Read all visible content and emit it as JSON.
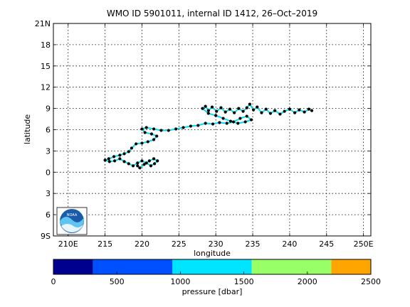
{
  "chart_data": {
    "type": "scatter",
    "title": "WMO ID 5901011, internal ID 1412, 26–Oct–2019",
    "xlabel": "longitude",
    "ylabel": "latitude",
    "xlim": [
      208,
      251
    ],
    "ylim": [
      -9,
      21
    ],
    "x_ticks": [
      210,
      215,
      220,
      225,
      230,
      235,
      240,
      245,
      250
    ],
    "x_tick_labels": [
      "210E",
      "215",
      "220",
      "225",
      "230",
      "235",
      "240",
      "245",
      "250E"
    ],
    "y_ticks": [
      21,
      18,
      15,
      12,
      9,
      6,
      3,
      0,
      -3,
      -6,
      -9
    ],
    "y_tick_labels": [
      "21N",
      "18",
      "15",
      "12",
      "9",
      "6",
      "3",
      "0",
      "3",
      "6",
      "9S"
    ],
    "grid": true,
    "track": {
      "name": "float trajectory",
      "line_color": "#00ddee",
      "marker_color": "#000000",
      "points": [
        [
          243.0,
          8.7
        ],
        [
          242.6,
          8.9
        ],
        [
          242.0,
          8.5
        ],
        [
          241.3,
          8.8
        ],
        [
          240.7,
          8.4
        ],
        [
          240.0,
          8.9
        ],
        [
          239.3,
          8.6
        ],
        [
          238.7,
          8.2
        ],
        [
          238.0,
          8.7
        ],
        [
          237.4,
          8.3
        ],
        [
          236.8,
          8.9
        ],
        [
          236.2,
          8.4
        ],
        [
          235.6,
          9.2
        ],
        [
          235.1,
          8.8
        ],
        [
          234.6,
          9.6
        ],
        [
          234.2,
          9.1
        ],
        [
          233.7,
          8.6
        ],
        [
          233.1,
          9.0
        ],
        [
          232.5,
          8.4
        ],
        [
          231.9,
          8.9
        ],
        [
          231.3,
          8.5
        ],
        [
          230.7,
          9.1
        ],
        [
          230.1,
          8.6
        ],
        [
          229.5,
          9.2
        ],
        [
          229.0,
          8.7
        ],
        [
          228.6,
          9.3
        ],
        [
          228.2,
          9.0
        ],
        [
          229.0,
          8.3
        ],
        [
          230.0,
          8.0
        ],
        [
          231.0,
          7.6
        ],
        [
          232.0,
          7.2
        ],
        [
          233.0,
          6.9
        ],
        [
          234.0,
          7.1
        ],
        [
          234.8,
          7.4
        ],
        [
          234.2,
          7.9
        ],
        [
          233.3,
          7.6
        ],
        [
          232.4,
          7.1
        ],
        [
          231.5,
          6.9
        ],
        [
          230.5,
          7.0
        ],
        [
          229.6,
          6.8
        ],
        [
          228.6,
          6.9
        ],
        [
          227.6,
          6.6
        ],
        [
          226.6,
          6.5
        ],
        [
          225.6,
          6.3
        ],
        [
          224.6,
          6.1
        ],
        [
          223.6,
          5.9
        ],
        [
          222.6,
          5.9
        ],
        [
          221.6,
          6.1
        ],
        [
          220.6,
          6.3
        ],
        [
          220.0,
          6.1
        ],
        [
          220.4,
          5.6
        ],
        [
          221.3,
          5.4
        ],
        [
          222.0,
          5.1
        ],
        [
          221.6,
          4.6
        ],
        [
          220.8,
          4.3
        ],
        [
          220.0,
          4.1
        ],
        [
          219.2,
          4.0
        ],
        [
          218.6,
          3.4
        ],
        [
          218.2,
          2.9
        ],
        [
          217.6,
          2.6
        ],
        [
          217.0,
          2.4
        ],
        [
          216.2,
          2.2
        ],
        [
          215.5,
          1.9
        ],
        [
          215.0,
          1.7
        ],
        [
          215.6,
          1.5
        ],
        [
          216.3,
          1.6
        ],
        [
          217.0,
          1.9
        ],
        [
          217.6,
          1.5
        ],
        [
          218.2,
          1.2
        ],
        [
          218.8,
          0.9
        ],
        [
          219.4,
          1.3
        ],
        [
          220.0,
          1.6
        ],
        [
          220.6,
          1.3
        ],
        [
          221.2,
          0.9
        ],
        [
          221.7,
          1.2
        ],
        [
          222.1,
          1.6
        ],
        [
          221.6,
          1.9
        ],
        [
          221.0,
          1.6
        ],
        [
          220.3,
          1.1
        ],
        [
          219.7,
          0.6
        ],
        [
          219.4,
          0.9
        ]
      ]
    },
    "colorbar": {
      "label": "pressure [dbar]",
      "range": [
        0,
        2500
      ],
      "ticks": [
        0,
        500,
        1000,
        1500,
        2000,
        2500
      ],
      "bands": [
        {
          "from": 0,
          "to": 312,
          "color": "#00008f"
        },
        {
          "from": 312,
          "to": 938,
          "color": "#0050ff"
        },
        {
          "from": 938,
          "to": 1562,
          "color": "#00e5ff"
        },
        {
          "from": 1562,
          "to": 2188,
          "color": "#99ff66"
        },
        {
          "from": 2188,
          "to": 2500,
          "color": "#ffa500"
        }
      ]
    },
    "logo_text": "NOAA"
  }
}
